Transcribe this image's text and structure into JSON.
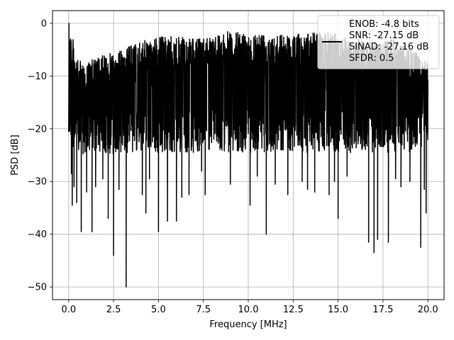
{
  "chart_data": {
    "type": "line",
    "title": "",
    "xlabel": "Frequency [MHz]",
    "ylabel": "PSD [dB]",
    "xlim": [
      -0.9,
      20.9
    ],
    "ylim": [
      -52.4,
      2.4
    ],
    "grid": true,
    "legend_position": "top-right",
    "x_ticks": [
      0.0,
      2.5,
      5.0,
      7.5,
      10.0,
      12.5,
      15.0,
      17.5,
      20.0
    ],
    "x_tick_labels": [
      "0.0",
      "2.5",
      "5.0",
      "7.5",
      "10.0",
      "12.5",
      "15.0",
      "17.5",
      "20.0"
    ],
    "y_ticks": [
      0,
      -10,
      -20,
      -30,
      -40,
      -50
    ],
    "y_tick_labels": [
      "0",
      "−10",
      "−20",
      "−30",
      "−40",
      "−50"
    ],
    "legend_lines": [
      "ENOB: -4.8 bits",
      "SNR: -27.15 dB",
      "SINAD: -27.16 dB",
      "SFDR: 0.5"
    ],
    "series": [
      {
        "color": "#000000",
        "description_of_shape": "dense noise floor between about -27 dB and -3 dB across 0-20 MHz",
        "envelope": {
          "x": [
            0.0,
            0.05,
            0.5,
            1.0,
            1.5,
            2.0,
            2.5,
            3.0,
            3.5,
            4.0,
            4.5,
            5.0,
            6.0,
            7.0,
            8.0,
            9.0,
            10.0,
            11.0,
            12.0,
            13.0,
            14.0,
            15.0,
            16.0,
            17.0,
            18.0,
            19.0,
            20.0
          ],
          "upper": [
            -4.5,
            0.0,
            -7.0,
            -7.5,
            -6.5,
            -6.0,
            -5.5,
            -5.0,
            -4.0,
            -3.5,
            -3.0,
            -2.5,
            -2.5,
            -3.0,
            -2.0,
            -1.5,
            -2.0,
            -1.5,
            -2.0,
            -2.0,
            -1.5,
            -2.0,
            -3.0,
            -3.5,
            -3.0,
            -4.5,
            -7.5
          ],
          "lower_typ": [
            -23.0,
            -22.0,
            -25.0,
            -25.0,
            -24.5,
            -24.5,
            -25.0,
            -24.5,
            -24.5,
            -24.5,
            -24.0,
            -24.5,
            -24.5,
            -24.5,
            -24.0,
            -24.5,
            -24.5,
            -24.5,
            -24.0,
            -24.5,
            -24.5,
            -24.5,
            -24.5,
            -24.5,
            -24.5,
            -24.5,
            -23.0
          ]
        },
        "dips": [
          [
            0.15,
            -28.5
          ],
          [
            0.2,
            -34.5
          ],
          [
            0.3,
            -31.0
          ],
          [
            0.45,
            -34.0
          ],
          [
            0.7,
            -39.5
          ],
          [
            1.0,
            -32.0
          ],
          [
            1.3,
            -39.5
          ],
          [
            1.5,
            -31.0
          ],
          [
            1.9,
            -29.5
          ],
          [
            2.2,
            -27.5
          ],
          [
            2.2,
            -37.0
          ],
          [
            2.5,
            -44.0
          ],
          [
            2.8,
            -31.5
          ],
          [
            3.2,
            -50.0
          ],
          [
            4.1,
            -32.5
          ],
          [
            4.3,
            -36.0
          ],
          [
            4.5,
            -29.5
          ],
          [
            5.0,
            -39.5
          ],
          [
            5.5,
            -37.5
          ],
          [
            6.0,
            -37.5
          ],
          [
            6.3,
            -33.0
          ],
          [
            6.7,
            -32.5
          ],
          [
            7.4,
            -28.0
          ],
          [
            7.6,
            -32.5
          ],
          [
            9.0,
            -30.5
          ],
          [
            10.1,
            -34.5
          ],
          [
            10.5,
            -29.0
          ],
          [
            11.0,
            -40.0
          ],
          [
            11.5,
            -30.5
          ],
          [
            12.2,
            -32.5
          ],
          [
            13.0,
            -30.0
          ],
          [
            13.3,
            -31.5
          ],
          [
            13.7,
            -32.0
          ],
          [
            14.5,
            -32.5
          ],
          [
            14.8,
            -30.0
          ],
          [
            15.0,
            -37.0
          ],
          [
            15.5,
            -29.0
          ],
          [
            16.7,
            -41.5
          ],
          [
            17.0,
            -43.5
          ],
          [
            17.2,
            -41.0
          ],
          [
            17.8,
            -41.5
          ],
          [
            18.2,
            -29.5
          ],
          [
            18.5,
            -31.0
          ],
          [
            19.0,
            -30.0
          ],
          [
            19.6,
            -42.5
          ],
          [
            19.8,
            -31.5
          ],
          [
            19.9,
            -36.0
          ]
        ]
      }
    ]
  }
}
